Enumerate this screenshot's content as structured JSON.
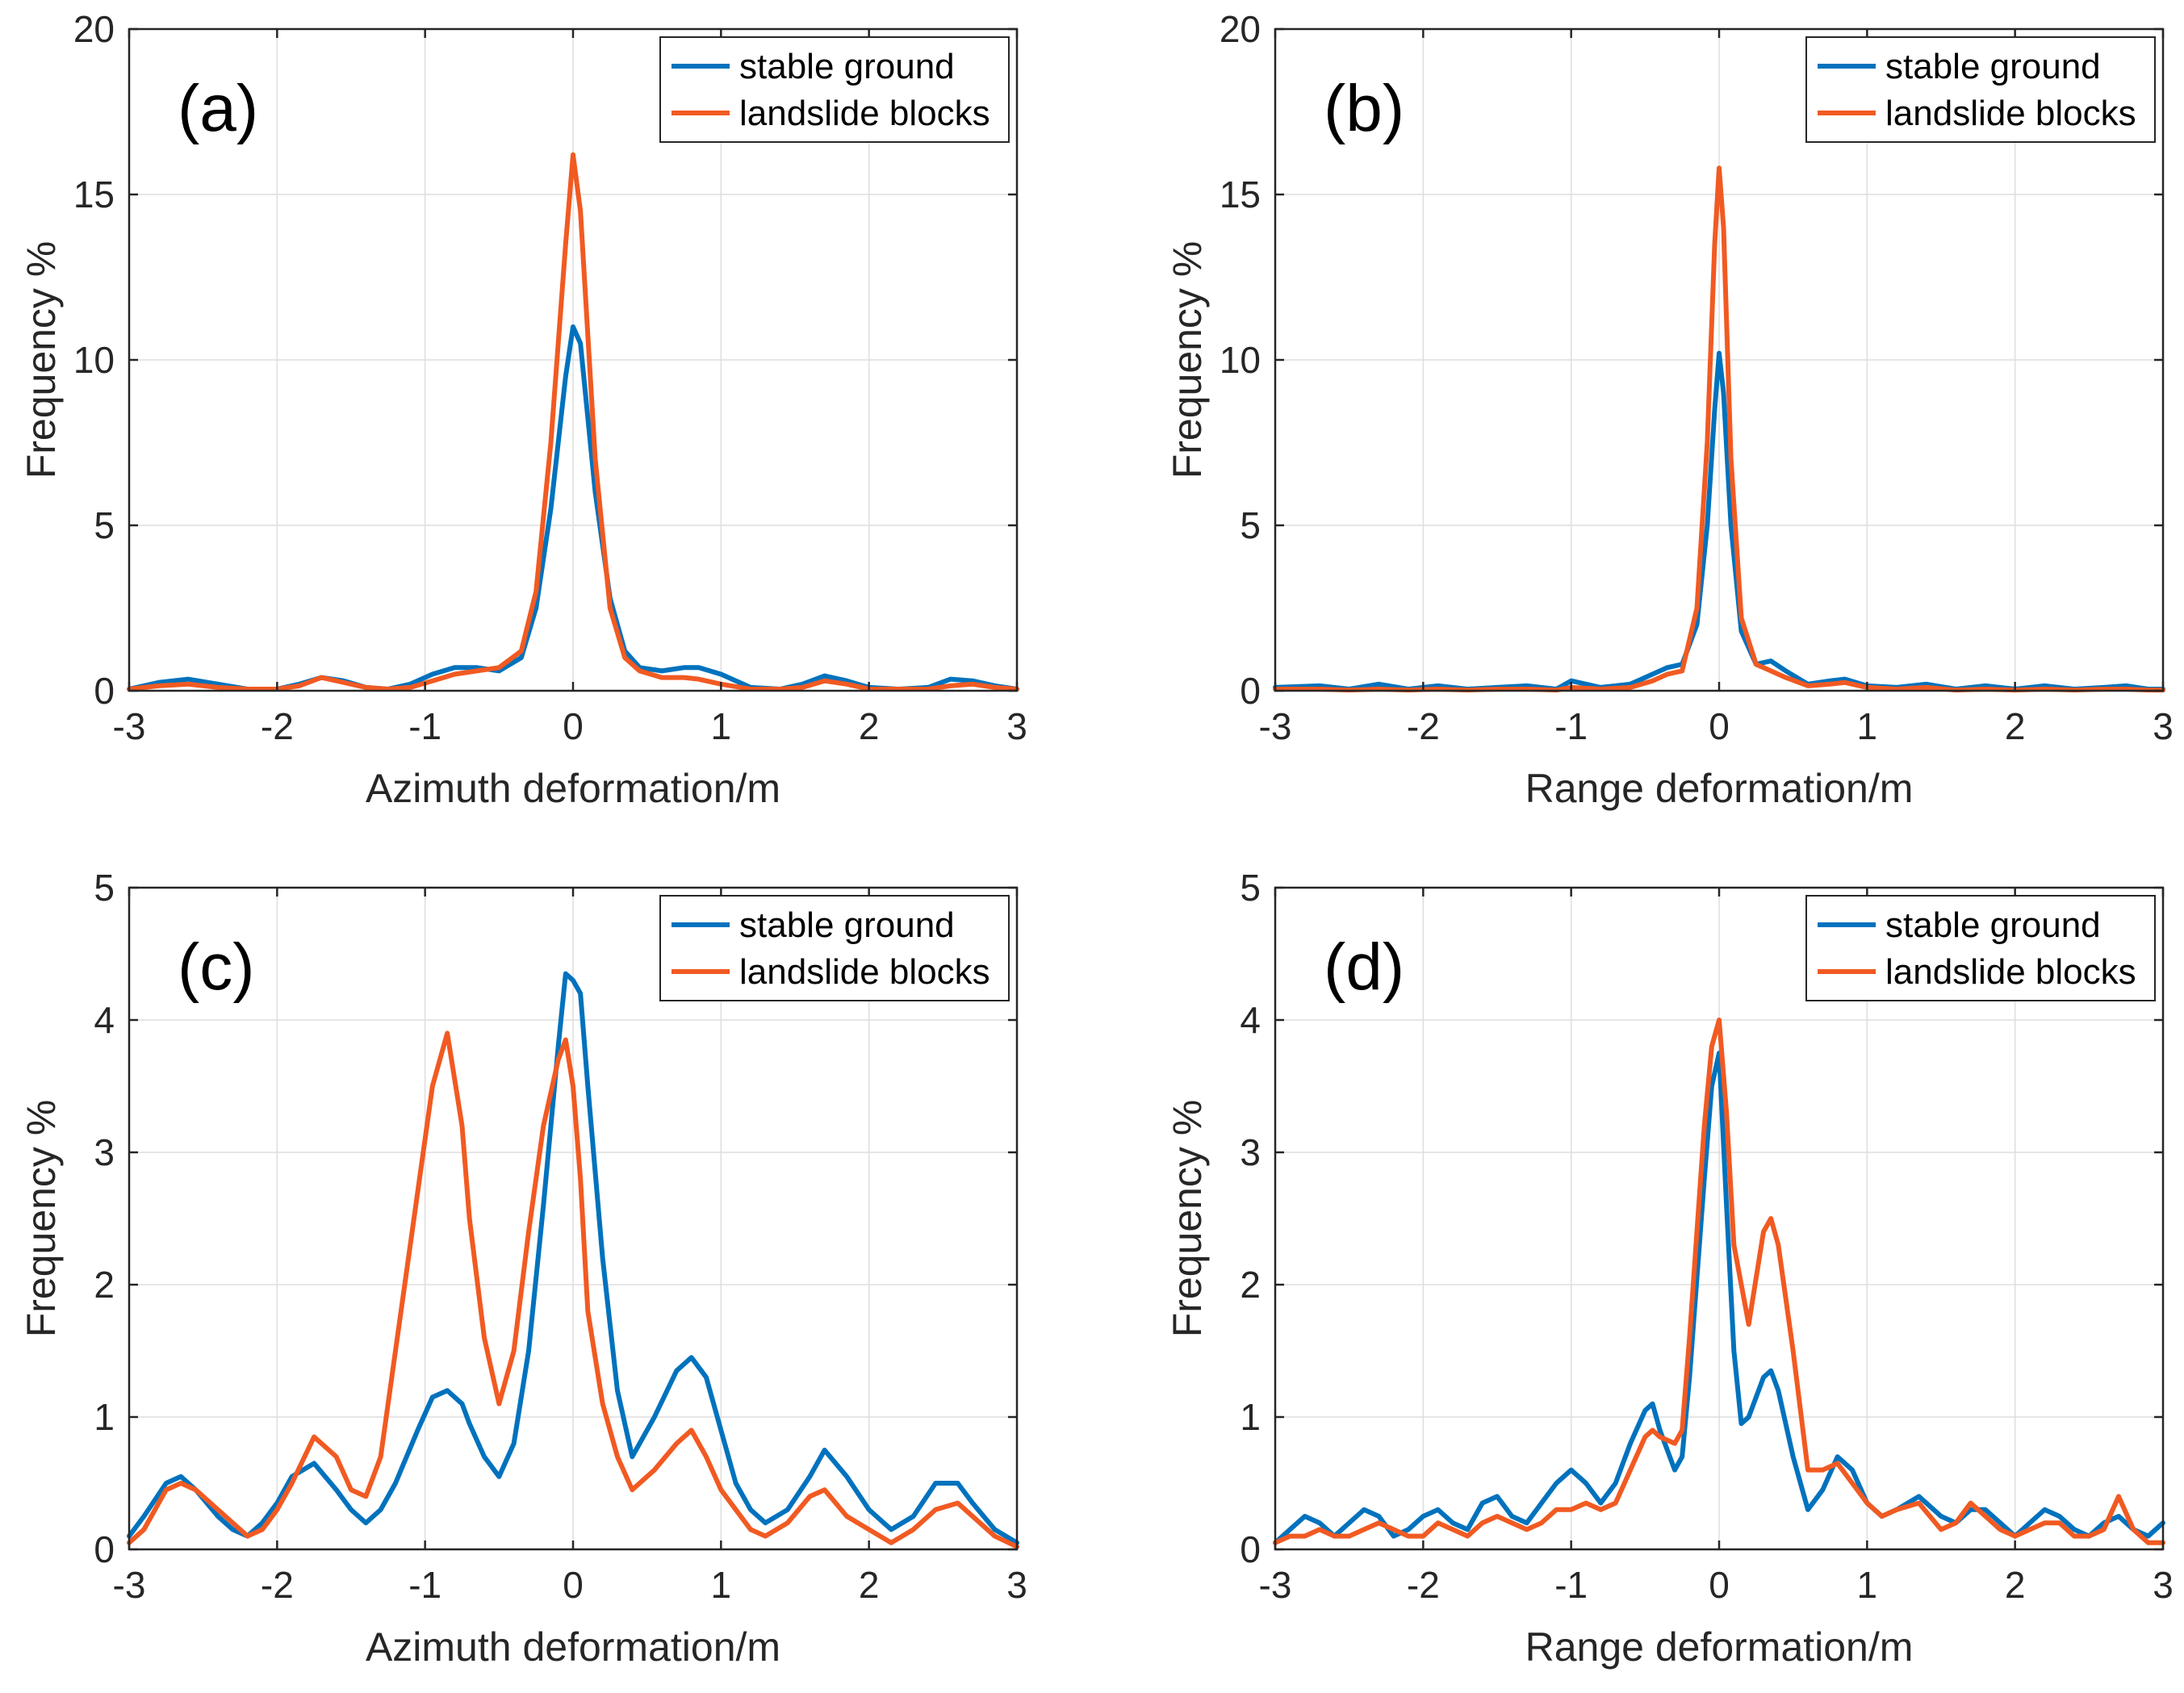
{
  "colors": {
    "stable": "#0072BD",
    "landslide": "#F15A22",
    "text": "#262626"
  },
  "chart_data": [
    {
      "type": "line",
      "panel_label": "(a)",
      "xlabel": "Azimuth deformation/m",
      "ylabel": "Frequency %",
      "xlim": [
        -3,
        3
      ],
      "ylim": [
        0,
        20
      ],
      "xticks": [
        -3,
        -2,
        -1,
        0,
        1,
        2,
        3
      ],
      "yticks": [
        0,
        5,
        10,
        15,
        20
      ],
      "grid": true,
      "legend_position": "top-right",
      "series": [
        {
          "name": "stable ground",
          "color_key": "stable",
          "x": [
            -3,
            -2.8,
            -2.6,
            -2.4,
            -2.2,
            -2.0,
            -1.85,
            -1.7,
            -1.55,
            -1.4,
            -1.25,
            -1.1,
            -0.95,
            -0.8,
            -0.65,
            -0.5,
            -0.35,
            -0.25,
            -0.15,
            -0.05,
            0,
            0.05,
            0.15,
            0.25,
            0.35,
            0.45,
            0.6,
            0.75,
            0.85,
            1.0,
            1.2,
            1.4,
            1.55,
            1.7,
            1.85,
            2.0,
            2.2,
            2.4,
            2.55,
            2.7,
            2.85,
            3.0
          ],
          "y": [
            0.05,
            0.25,
            0.35,
            0.2,
            0.05,
            0.05,
            0.2,
            0.4,
            0.3,
            0.1,
            0.05,
            0.2,
            0.5,
            0.7,
            0.7,
            0.6,
            1.0,
            2.5,
            5.5,
            9.5,
            11.0,
            10.5,
            6.0,
            2.8,
            1.2,
            0.7,
            0.6,
            0.7,
            0.7,
            0.5,
            0.1,
            0.05,
            0.2,
            0.45,
            0.3,
            0.1,
            0.05,
            0.1,
            0.35,
            0.3,
            0.15,
            0.05
          ]
        },
        {
          "name": "landslide blocks",
          "color_key": "landslide",
          "x": [
            -3,
            -2.8,
            -2.6,
            -2.4,
            -2.2,
            -2.0,
            -1.85,
            -1.7,
            -1.55,
            -1.4,
            -1.25,
            -1.1,
            -0.95,
            -0.8,
            -0.65,
            -0.5,
            -0.35,
            -0.25,
            -0.15,
            -0.05,
            0,
            0.05,
            0.15,
            0.25,
            0.35,
            0.45,
            0.6,
            0.75,
            0.85,
            1.0,
            1.2,
            1.4,
            1.55,
            1.7,
            1.85,
            2.0,
            2.2,
            2.4,
            2.55,
            2.7,
            2.85,
            3.0
          ],
          "y": [
            0.05,
            0.15,
            0.2,
            0.1,
            0.05,
            0.05,
            0.15,
            0.4,
            0.25,
            0.1,
            0.05,
            0.1,
            0.3,
            0.5,
            0.6,
            0.7,
            1.2,
            3.0,
            7.5,
            13.5,
            16.2,
            14.5,
            7.0,
            2.5,
            1.0,
            0.6,
            0.4,
            0.4,
            0.35,
            0.2,
            0.05,
            0.05,
            0.1,
            0.3,
            0.2,
            0.05,
            0.05,
            0.05,
            0.15,
            0.2,
            0.1,
            0.05
          ]
        }
      ]
    },
    {
      "type": "line",
      "panel_label": "(b)",
      "xlabel": "Range deformation/m",
      "ylabel": "Frequency %",
      "xlim": [
        -3,
        3
      ],
      "ylim": [
        0,
        20
      ],
      "xticks": [
        -3,
        -2,
        -1,
        0,
        1,
        2,
        3
      ],
      "yticks": [
        0,
        5,
        10,
        15,
        20
      ],
      "grid": true,
      "legend_position": "top-right",
      "series": [
        {
          "name": "stable ground",
          "color_key": "stable",
          "x": [
            -3,
            -2.7,
            -2.5,
            -2.3,
            -2.1,
            -1.9,
            -1.7,
            -1.5,
            -1.3,
            -1.1,
            -1.0,
            -0.8,
            -0.6,
            -0.45,
            -0.35,
            -0.25,
            -0.15,
            -0.08,
            -0.03,
            0,
            0.03,
            0.08,
            0.15,
            0.25,
            0.35,
            0.45,
            0.6,
            0.75,
            0.85,
            1.0,
            1.2,
            1.4,
            1.6,
            1.8,
            2.0,
            2.2,
            2.4,
            2.6,
            2.75,
            2.9,
            3.0
          ],
          "y": [
            0.1,
            0.15,
            0.05,
            0.2,
            0.05,
            0.15,
            0.05,
            0.1,
            0.15,
            0.05,
            0.3,
            0.1,
            0.2,
            0.5,
            0.7,
            0.8,
            2.0,
            5.0,
            8.5,
            10.2,
            9.0,
            5.0,
            1.8,
            0.8,
            0.9,
            0.6,
            0.2,
            0.3,
            0.35,
            0.15,
            0.1,
            0.2,
            0.05,
            0.15,
            0.05,
            0.15,
            0.05,
            0.1,
            0.15,
            0.05,
            0.05
          ]
        },
        {
          "name": "landslide blocks",
          "color_key": "landslide",
          "x": [
            -3,
            -2.7,
            -2.5,
            -2.3,
            -2.1,
            -1.9,
            -1.7,
            -1.5,
            -1.3,
            -1.1,
            -1.0,
            -0.8,
            -0.6,
            -0.45,
            -0.35,
            -0.25,
            -0.15,
            -0.08,
            -0.03,
            0,
            0.03,
            0.08,
            0.15,
            0.25,
            0.35,
            0.45,
            0.6,
            0.75,
            0.85,
            1.0,
            1.2,
            1.4,
            1.6,
            1.8,
            2.0,
            2.2,
            2.4,
            2.6,
            2.75,
            2.9,
            3.0
          ],
          "y": [
            0.05,
            0.05,
            0.02,
            0.05,
            0.02,
            0.05,
            0.02,
            0.05,
            0.05,
            0.02,
            0.1,
            0.05,
            0.1,
            0.3,
            0.5,
            0.6,
            2.5,
            7.5,
            13.5,
            15.8,
            14.0,
            7.0,
            2.2,
            0.8,
            0.6,
            0.4,
            0.15,
            0.2,
            0.25,
            0.1,
            0.05,
            0.1,
            0.02,
            0.05,
            0.02,
            0.05,
            0.02,
            0.05,
            0.05,
            0.02,
            0.02
          ]
        }
      ]
    },
    {
      "type": "line",
      "panel_label": "(c)",
      "xlabel": "Azimuth deformation/m",
      "ylabel": "Frequency %",
      "xlim": [
        -3,
        3
      ],
      "ylim": [
        0,
        5
      ],
      "xticks": [
        -3,
        -2,
        -1,
        0,
        1,
        2,
        3
      ],
      "yticks": [
        0,
        1,
        2,
        3,
        4,
        5
      ],
      "grid": true,
      "legend_position": "top-right",
      "series": [
        {
          "name": "stable ground",
          "color_key": "stable",
          "x": [
            -3,
            -2.9,
            -2.75,
            -2.65,
            -2.55,
            -2.4,
            -2.3,
            -2.2,
            -2.1,
            -2.0,
            -1.9,
            -1.75,
            -1.6,
            -1.5,
            -1.4,
            -1.3,
            -1.2,
            -1.05,
            -0.95,
            -0.85,
            -0.75,
            -0.7,
            -0.6,
            -0.5,
            -0.4,
            -0.3,
            -0.2,
            -0.1,
            -0.05,
            0.0,
            0.05,
            0.1,
            0.2,
            0.3,
            0.4,
            0.55,
            0.7,
            0.8,
            0.9,
            1.0,
            1.1,
            1.2,
            1.3,
            1.45,
            1.6,
            1.7,
            1.85,
            2.0,
            2.15,
            2.3,
            2.45,
            2.6,
            2.7,
            2.85,
            3.0
          ],
          "y": [
            0.1,
            0.25,
            0.5,
            0.55,
            0.45,
            0.25,
            0.15,
            0.1,
            0.2,
            0.35,
            0.55,
            0.65,
            0.45,
            0.3,
            0.2,
            0.3,
            0.5,
            0.9,
            1.15,
            1.2,
            1.1,
            0.95,
            0.7,
            0.55,
            0.8,
            1.5,
            2.6,
            3.8,
            4.35,
            4.3,
            4.2,
            3.5,
            2.2,
            1.2,
            0.7,
            1.0,
            1.35,
            1.45,
            1.3,
            0.9,
            0.5,
            0.3,
            0.2,
            0.3,
            0.55,
            0.75,
            0.55,
            0.3,
            0.15,
            0.25,
            0.5,
            0.5,
            0.35,
            0.15,
            0.05
          ]
        },
        {
          "name": "landslide blocks",
          "color_key": "landslide",
          "x": [
            -3,
            -2.9,
            -2.75,
            -2.65,
            -2.55,
            -2.4,
            -2.3,
            -2.2,
            -2.1,
            -2.0,
            -1.9,
            -1.75,
            -1.6,
            -1.5,
            -1.4,
            -1.3,
            -1.2,
            -1.05,
            -0.95,
            -0.85,
            -0.75,
            -0.7,
            -0.6,
            -0.5,
            -0.4,
            -0.3,
            -0.2,
            -0.1,
            -0.05,
            0.0,
            0.05,
            0.1,
            0.2,
            0.3,
            0.4,
            0.55,
            0.7,
            0.8,
            0.9,
            1.0,
            1.1,
            1.2,
            1.3,
            1.45,
            1.6,
            1.7,
            1.85,
            2.0,
            2.15,
            2.3,
            2.45,
            2.6,
            2.7,
            2.85,
            3.0
          ],
          "y": [
            0.05,
            0.15,
            0.45,
            0.5,
            0.45,
            0.3,
            0.2,
            0.1,
            0.15,
            0.3,
            0.5,
            0.85,
            0.7,
            0.45,
            0.4,
            0.7,
            1.5,
            2.7,
            3.5,
            3.9,
            3.2,
            2.5,
            1.6,
            1.1,
            1.5,
            2.4,
            3.2,
            3.7,
            3.85,
            3.5,
            2.8,
            1.8,
            1.1,
            0.7,
            0.45,
            0.6,
            0.8,
            0.9,
            0.7,
            0.45,
            0.3,
            0.15,
            0.1,
            0.2,
            0.4,
            0.45,
            0.25,
            0.15,
            0.05,
            0.15,
            0.3,
            0.35,
            0.25,
            0.1,
            0.02
          ]
        }
      ]
    },
    {
      "type": "line",
      "panel_label": "(d)",
      "xlabel": "Range deformation/m",
      "ylabel": "Frequency %",
      "xlim": [
        -3,
        3
      ],
      "ylim": [
        0,
        5
      ],
      "xticks": [
        -3,
        -2,
        -1,
        0,
        1,
        2,
        3
      ],
      "yticks": [
        0,
        1,
        2,
        3,
        4,
        5
      ],
      "grid": true,
      "legend_position": "top-right",
      "series": [
        {
          "name": "stable ground",
          "color_key": "stable",
          "x": [
            -3,
            -2.9,
            -2.8,
            -2.7,
            -2.6,
            -2.5,
            -2.4,
            -2.3,
            -2.2,
            -2.1,
            -2.0,
            -1.9,
            -1.8,
            -1.7,
            -1.6,
            -1.5,
            -1.4,
            -1.3,
            -1.2,
            -1.1,
            -1.0,
            -0.9,
            -0.8,
            -0.7,
            -0.6,
            -0.5,
            -0.45,
            -0.4,
            -0.3,
            -0.25,
            -0.2,
            -0.1,
            -0.05,
            0.0,
            0.05,
            0.1,
            0.15,
            0.2,
            0.3,
            0.35,
            0.4,
            0.5,
            0.6,
            0.7,
            0.8,
            0.9,
            1.0,
            1.1,
            1.2,
            1.35,
            1.5,
            1.6,
            1.7,
            1.8,
            1.9,
            2.0,
            2.1,
            2.2,
            2.3,
            2.4,
            2.5,
            2.6,
            2.7,
            2.8,
            2.9,
            3.0
          ],
          "y": [
            0.05,
            0.15,
            0.25,
            0.2,
            0.1,
            0.2,
            0.3,
            0.25,
            0.1,
            0.15,
            0.25,
            0.3,
            0.2,
            0.15,
            0.35,
            0.4,
            0.25,
            0.2,
            0.35,
            0.5,
            0.6,
            0.5,
            0.35,
            0.5,
            0.8,
            1.05,
            1.1,
            0.9,
            0.6,
            0.7,
            1.3,
            2.8,
            3.5,
            3.75,
            2.6,
            1.5,
            0.95,
            1.0,
            1.3,
            1.35,
            1.2,
            0.7,
            0.3,
            0.45,
            0.7,
            0.6,
            0.35,
            0.25,
            0.3,
            0.4,
            0.25,
            0.2,
            0.3,
            0.3,
            0.2,
            0.1,
            0.2,
            0.3,
            0.25,
            0.15,
            0.1,
            0.2,
            0.25,
            0.15,
            0.1,
            0.2
          ]
        },
        {
          "name": "landslide blocks",
          "color_key": "landslide",
          "x": [
            -3,
            -2.9,
            -2.8,
            -2.7,
            -2.6,
            -2.5,
            -2.4,
            -2.3,
            -2.2,
            -2.1,
            -2.0,
            -1.9,
            -1.8,
            -1.7,
            -1.6,
            -1.5,
            -1.4,
            -1.3,
            -1.2,
            -1.1,
            -1.0,
            -0.9,
            -0.8,
            -0.7,
            -0.6,
            -0.5,
            -0.45,
            -0.4,
            -0.3,
            -0.25,
            -0.2,
            -0.1,
            -0.05,
            0.0,
            0.05,
            0.1,
            0.15,
            0.2,
            0.3,
            0.35,
            0.4,
            0.5,
            0.6,
            0.7,
            0.8,
            0.9,
            1.0,
            1.1,
            1.2,
            1.35,
            1.5,
            1.6,
            1.7,
            1.8,
            1.9,
            2.0,
            2.1,
            2.2,
            2.3,
            2.4,
            2.5,
            2.6,
            2.7,
            2.8,
            2.9,
            3.0
          ],
          "y": [
            0.05,
            0.1,
            0.1,
            0.15,
            0.1,
            0.1,
            0.15,
            0.2,
            0.15,
            0.1,
            0.1,
            0.2,
            0.15,
            0.1,
            0.2,
            0.25,
            0.2,
            0.15,
            0.2,
            0.3,
            0.3,
            0.35,
            0.3,
            0.35,
            0.6,
            0.85,
            0.9,
            0.85,
            0.8,
            0.9,
            1.6,
            3.2,
            3.8,
            4.0,
            3.3,
            2.3,
            2.0,
            1.7,
            2.4,
            2.5,
            2.3,
            1.5,
            0.6,
            0.6,
            0.65,
            0.5,
            0.35,
            0.25,
            0.3,
            0.35,
            0.15,
            0.2,
            0.35,
            0.25,
            0.15,
            0.1,
            0.15,
            0.2,
            0.2,
            0.1,
            0.1,
            0.15,
            0.4,
            0.15,
            0.05,
            0.05
          ]
        }
      ]
    }
  ]
}
